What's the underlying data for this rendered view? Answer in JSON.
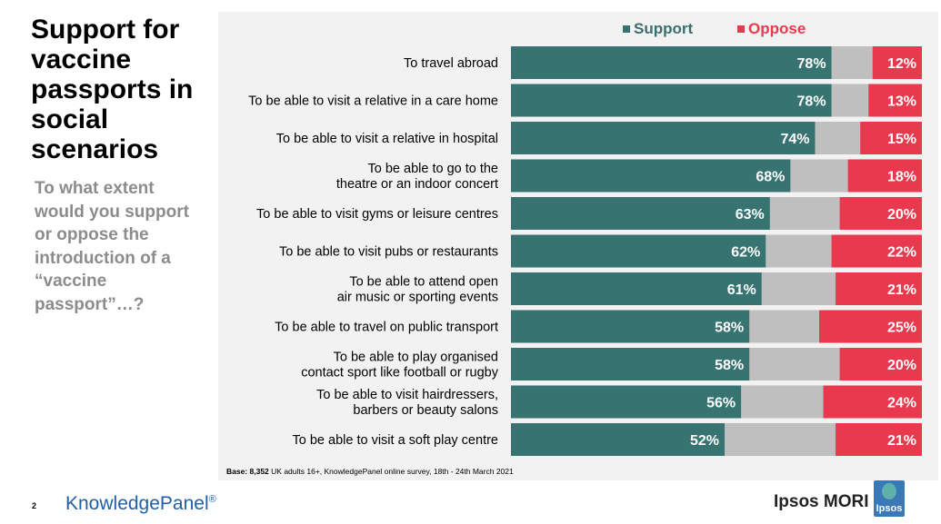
{
  "slide": {
    "title": "Support for\nvaccine\npassports in\nsocial\nscenarios",
    "question": "To what extent\nwould you support\nor oppose the\nintroduction of a\n“vaccine\npassport”…?",
    "base_label": "Base: 8,352",
    "base_text": " UK adults 16+, KnowledgePanel online survey, 18th - 24th March 2021",
    "page_number": "2",
    "footer_brand": "KnowledgePanel",
    "footer_brand_mark": "®",
    "company_name": "Ipsos MORI",
    "company_logo_text": "Ipsos"
  },
  "colors": {
    "support": "#377371",
    "oppose": "#e8394f",
    "neither": "#bfbfbf",
    "panel_bg": "#f2f2f2"
  },
  "chart_data": {
    "type": "bar",
    "orientation": "horizontal",
    "stacked": true,
    "legend": [
      "Support",
      "Oppose"
    ],
    "legend_position": "top-right",
    "xlim": [
      0,
      100
    ],
    "categories": [
      "To travel abroad",
      "To be able to visit a relative in a care home",
      "To be able to visit a relative in hospital",
      "To be able to go to the\ntheatre or an indoor concert",
      "To be able to visit gyms or leisure centres",
      "To be able to visit pubs or restaurants",
      "To be able to attend open\nair music or sporting events",
      "To be able to travel on public transport",
      "To be able to play organised\ncontact sport like football or rugby",
      "To be able to visit hairdressers,\nbarbers or beauty salons",
      "To be able to visit a soft play centre"
    ],
    "series": [
      {
        "name": "Support",
        "values": [
          78,
          78,
          74,
          68,
          63,
          62,
          61,
          58,
          58,
          56,
          52
        ]
      },
      {
        "name": "Oppose",
        "values": [
          12,
          13,
          15,
          18,
          20,
          22,
          21,
          25,
          20,
          24,
          21
        ]
      }
    ]
  }
}
